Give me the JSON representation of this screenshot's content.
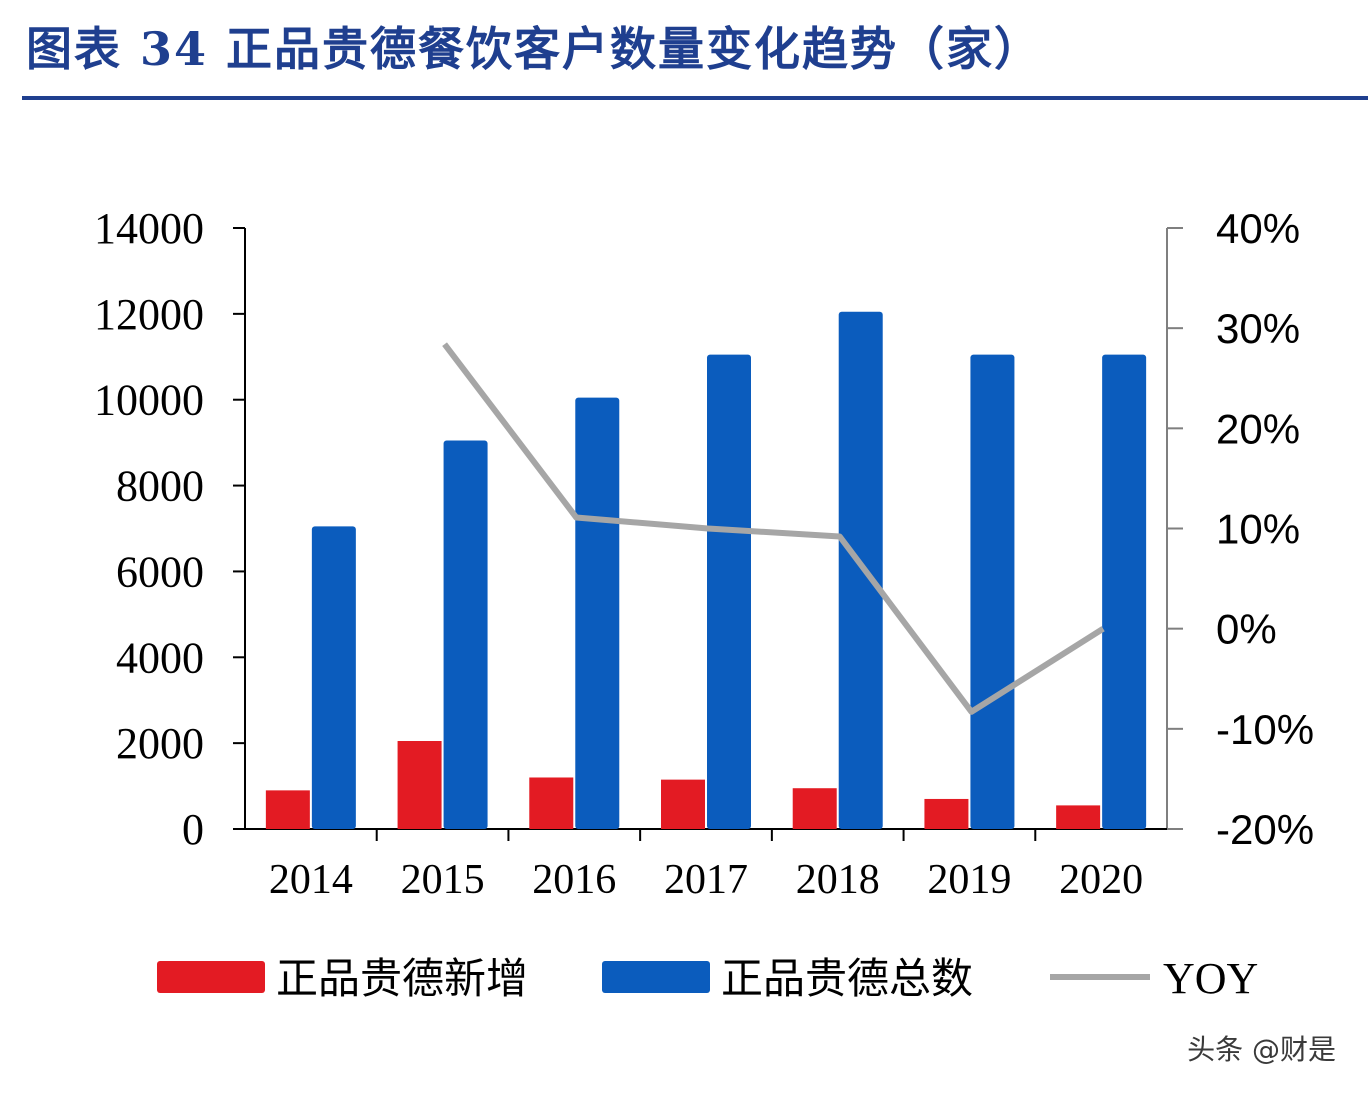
{
  "header": {
    "title": "图表 34  正品贵德餐饮客户数量变化趋势（家）"
  },
  "watermark": "头条 @财是",
  "colors": {
    "new": "#e31b23",
    "total": "#0b5cbd",
    "yoy": "#a6a6a6",
    "title": "#1f3f8f"
  },
  "chart_data": {
    "type": "bar",
    "categories": [
      "2014",
      "2015",
      "2016",
      "2017",
      "2018",
      "2019",
      "2020"
    ],
    "series": [
      {
        "name": "正品贵德新增",
        "type": "bar",
        "axis": "left",
        "values": [
          900,
          2050,
          1200,
          1150,
          950,
          700,
          550
        ]
      },
      {
        "name": "正品贵德总数",
        "type": "bar",
        "axis": "left",
        "values": [
          7050,
          9050,
          10050,
          11050,
          12050,
          11050,
          11050
        ]
      },
      {
        "name": "YOY",
        "type": "line",
        "axis": "right",
        "values": [
          null,
          0.284,
          0.111,
          0.1,
          0.092,
          -0.083,
          0.0
        ]
      }
    ],
    "y_left": {
      "min": 0,
      "max": 14000,
      "ticks": [
        "0",
        "2000",
        "4000",
        "6000",
        "8000",
        "10000",
        "12000",
        "14000"
      ]
    },
    "y_right": {
      "min": -0.2,
      "max": 0.4,
      "ticks": [
        "-20%",
        "-10%",
        "0%",
        "10%",
        "20%",
        "30%",
        "40%"
      ]
    },
    "grid": false,
    "legend": "bottom",
    "title": "图表 34  正品贵德餐饮客户数量变化趋势（家）"
  }
}
